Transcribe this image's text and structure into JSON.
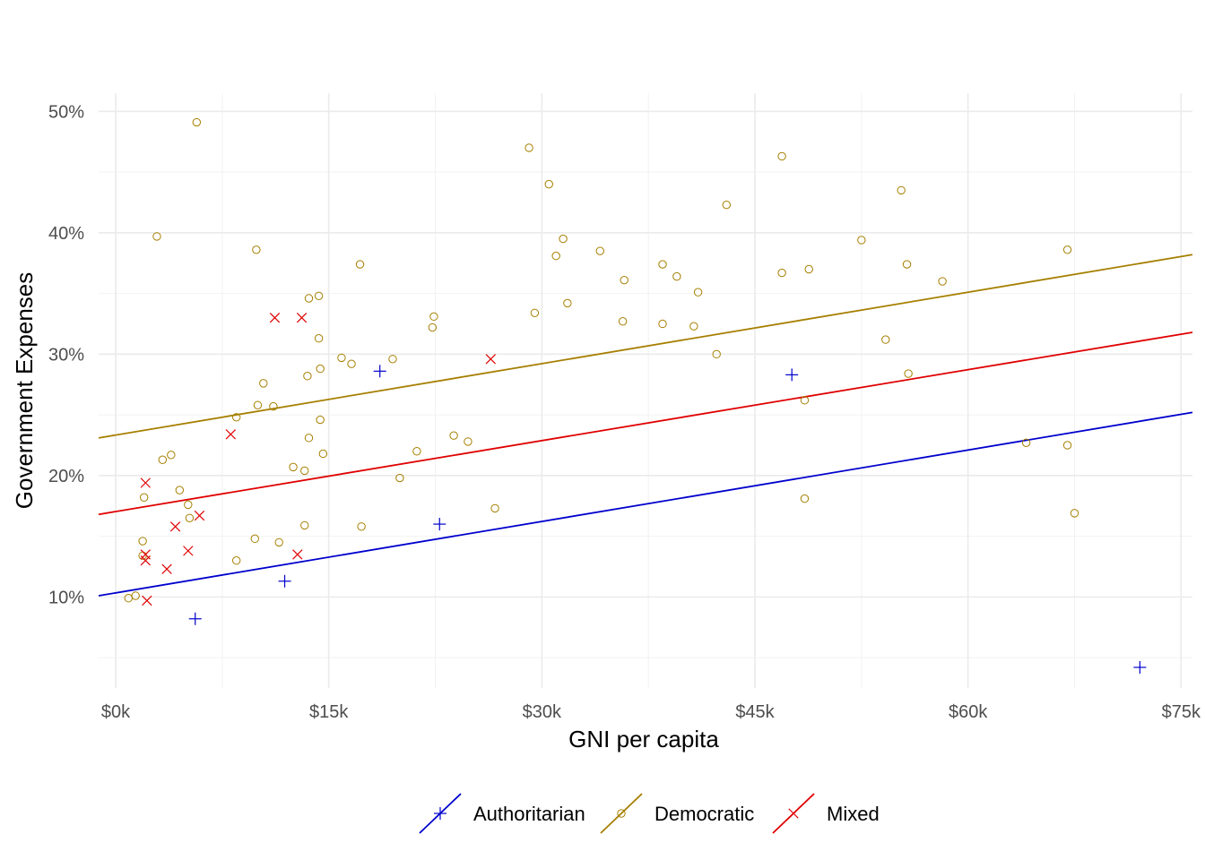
{
  "chart_data": {
    "type": "scatter",
    "title": "",
    "xlabel": "GNI per capita",
    "ylabel": "Government Expenses",
    "xlim": [
      -1200,
      75800
    ],
    "ylim": [
      2.5,
      51.5
    ],
    "x_ticks": [
      0,
      15000,
      30000,
      45000,
      60000,
      75000
    ],
    "x_tick_labels": [
      "$0k",
      "$15k",
      "$30k",
      "$45k",
      "$60k",
      "$75k"
    ],
    "y_ticks": [
      10,
      20,
      30,
      40,
      50
    ],
    "y_tick_labels": [
      "10%",
      "20%",
      "30%",
      "40%",
      "50%"
    ],
    "grid": true,
    "legend_position": "bottom",
    "series": [
      {
        "name": "Authoritarian",
        "color": "#0000CD",
        "marker": "plus",
        "fit": {
          "x": [
            -1200,
            75800
          ],
          "y": [
            10.1,
            25.2
          ]
        },
        "points": [
          [
            5600,
            8.2
          ],
          [
            11900,
            11.3
          ],
          [
            18600,
            28.6
          ],
          [
            22800,
            16.0
          ],
          [
            47600,
            28.3
          ],
          [
            72100,
            4.2
          ]
        ]
      },
      {
        "name": "Democratic",
        "color": "#A67F00",
        "marker": "circle",
        "fit": {
          "x": [
            -1200,
            75800
          ],
          "y": [
            23.1,
            38.2
          ]
        },
        "points": [
          [
            5700,
            49.1
          ],
          [
            29100,
            47.0
          ],
          [
            30500,
            44.0
          ],
          [
            46900,
            46.3
          ],
          [
            55300,
            43.5
          ],
          [
            2900,
            39.7
          ],
          [
            9900,
            38.6
          ],
          [
            17200,
            37.4
          ],
          [
            31500,
            39.5
          ],
          [
            31000,
            38.1
          ],
          [
            34100,
            38.5
          ],
          [
            43000,
            42.3
          ],
          [
            52500,
            39.4
          ],
          [
            67000,
            38.6
          ],
          [
            55700,
            37.4
          ],
          [
            38500,
            37.4
          ],
          [
            39500,
            36.4
          ],
          [
            46900,
            36.7
          ],
          [
            48800,
            37.0
          ],
          [
            58200,
            36.0
          ],
          [
            35800,
            36.1
          ],
          [
            13600,
            34.6
          ],
          [
            14300,
            34.8
          ],
          [
            31800,
            34.2
          ],
          [
            29500,
            33.4
          ],
          [
            22400,
            33.1
          ],
          [
            22300,
            32.2
          ],
          [
            35700,
            32.7
          ],
          [
            38500,
            32.5
          ],
          [
            40700,
            32.3
          ],
          [
            41000,
            35.1
          ],
          [
            14300,
            31.3
          ],
          [
            42300,
            30.0
          ],
          [
            54200,
            31.2
          ],
          [
            15900,
            29.7
          ],
          [
            16600,
            29.2
          ],
          [
            19500,
            29.6
          ],
          [
            14400,
            28.8
          ],
          [
            13500,
            28.2
          ],
          [
            55800,
            28.4
          ],
          [
            10400,
            27.6
          ],
          [
            10000,
            25.8
          ],
          [
            11100,
            25.7
          ],
          [
            8500,
            24.8
          ],
          [
            14400,
            24.6
          ],
          [
            48500,
            26.2
          ],
          [
            13600,
            23.1
          ],
          [
            23800,
            23.3
          ],
          [
            24800,
            22.8
          ],
          [
            21200,
            22.0
          ],
          [
            3300,
            21.3
          ],
          [
            3900,
            21.7
          ],
          [
            14600,
            21.8
          ],
          [
            12500,
            20.7
          ],
          [
            13300,
            20.4
          ],
          [
            20000,
            19.8
          ],
          [
            4500,
            18.8
          ],
          [
            2000,
            18.2
          ],
          [
            5100,
            17.6
          ],
          [
            48500,
            18.1
          ],
          [
            26700,
            17.3
          ],
          [
            64100,
            22.7
          ],
          [
            67000,
            22.5
          ],
          [
            67500,
            16.9
          ],
          [
            5200,
            16.5
          ],
          [
            13300,
            15.9
          ],
          [
            17300,
            15.8
          ],
          [
            9800,
            14.8
          ],
          [
            11500,
            14.5
          ],
          [
            1900,
            14.6
          ],
          [
            8500,
            13.0
          ],
          [
            1900,
            13.4
          ],
          [
            1400,
            10.1
          ],
          [
            900,
            9.9
          ]
        ]
      },
      {
        "name": "Mixed",
        "color": "#E00000",
        "marker": "cross",
        "fit": {
          "x": [
            -1200,
            75800
          ],
          "y": [
            16.8,
            31.8
          ]
        },
        "points": [
          [
            11200,
            33.0
          ],
          [
            13100,
            33.0
          ],
          [
            26400,
            29.6
          ],
          [
            8100,
            23.4
          ],
          [
            2100,
            19.4
          ],
          [
            5900,
            16.7
          ],
          [
            4200,
            15.8
          ],
          [
            5100,
            13.8
          ],
          [
            2100,
            13.5
          ],
          [
            12800,
            13.5
          ],
          [
            2100,
            13.0
          ],
          [
            3600,
            12.3
          ],
          [
            2200,
            9.7
          ]
        ]
      }
    ]
  }
}
